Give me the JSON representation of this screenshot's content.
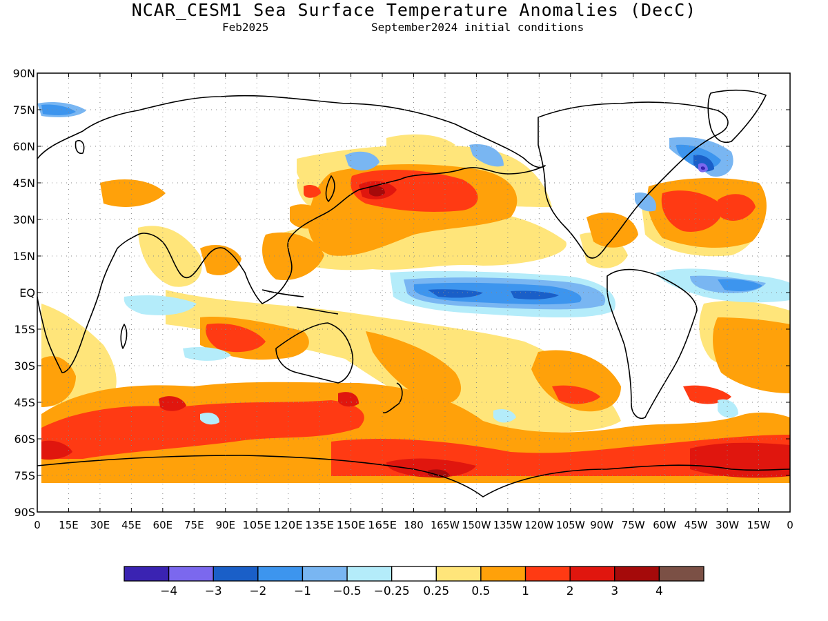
{
  "title": "NCAR_CESM1 Sea Surface Temperature Anomalies (DecC)",
  "subtitle_left": "Feb2025",
  "subtitle_right": "September2024 initial conditions",
  "lat_labels": [
    "90N",
    "75N",
    "60N",
    "45N",
    "30N",
    "15N",
    "EQ",
    "15S",
    "30S",
    "45S",
    "60S",
    "75S",
    "90S"
  ],
  "lon_labels": [
    "0",
    "15E",
    "30E",
    "45E",
    "60E",
    "75E",
    "90E",
    "105E",
    "120E",
    "135E",
    "150E",
    "165E",
    "180",
    "165W",
    "150W",
    "135W",
    "120W",
    "105W",
    "90W",
    "75W",
    "60W",
    "45W",
    "30W",
    "15W",
    "0"
  ],
  "colorbar": {
    "colors": [
      "#3a23b2",
      "#7b68ee",
      "#1a5fc8",
      "#3d95ee",
      "#79b6f2",
      "#b4ecfa",
      "#ffffff",
      "#ffe57a",
      "#ffa10a",
      "#ff3a13",
      "#e0160e",
      "#a50a0a",
      "#7b5045"
    ],
    "labels": [
      "−4",
      "−3",
      "−2",
      "−1",
      "−0.5",
      "−0.25",
      "0.25",
      "0.5",
      "1",
      "2",
      "3",
      "4"
    ]
  }
}
